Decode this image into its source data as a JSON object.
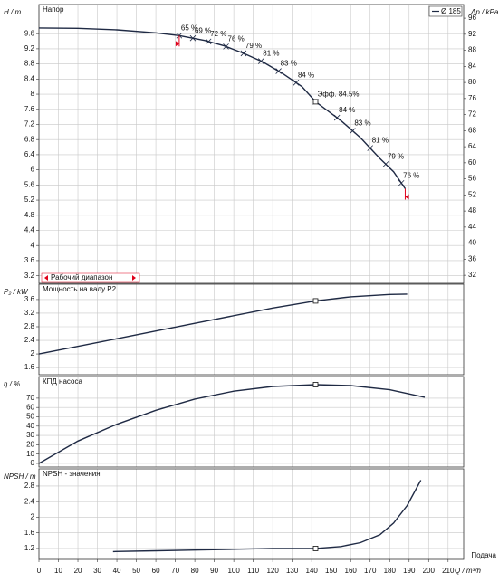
{
  "chart_data": [
    {
      "type": "line",
      "title": "Напор",
      "ylabel": "H / m",
      "y2label": "Δp / kPa",
      "xlim": [
        0,
        218
      ],
      "ylim": [
        3.0,
        10.37
      ],
      "yticks": [
        3.2,
        3.6,
        4,
        4.4,
        4.8,
        5.2,
        5.6,
        6,
        6.4,
        6.8,
        7.2,
        7.6,
        8,
        8.4,
        8.8,
        9.2,
        9.6
      ],
      "y2lim": [
        30,
        99.4
      ],
      "y2ticks": [
        32,
        36,
        40,
        44,
        48,
        52,
        56,
        60,
        64,
        68,
        72,
        76,
        80,
        84,
        88,
        92,
        96
      ],
      "grid": true,
      "legend": "top-right",
      "series": [
        {
          "name": "Ø 185",
          "color": "#1f2a44",
          "x": [
            0,
            20,
            40,
            60,
            72,
            85,
            95,
            105,
            115,
            125,
            135,
            142,
            155,
            165,
            175,
            182,
            188
          ],
          "values": [
            9.75,
            9.74,
            9.7,
            9.62,
            9.55,
            9.42,
            9.28,
            9.08,
            8.85,
            8.55,
            8.2,
            7.8,
            7.3,
            6.85,
            6.3,
            5.95,
            5.5
          ]
        }
      ],
      "markers": [
        {
          "x": 142,
          "y": 7.8
        }
      ],
      "annotations": [
        {
          "x": 72,
          "text": "65 %"
        },
        {
          "x": 79,
          "text": "69 %"
        },
        {
          "x": 87,
          "text": "72 %"
        },
        {
          "x": 96,
          "text": "76 %"
        },
        {
          "x": 105,
          "text": "79 %"
        },
        {
          "x": 114,
          "text": "81 %"
        },
        {
          "x": 123,
          "text": "83 %"
        },
        {
          "x": 132,
          "text": "84 %"
        },
        {
          "x": 142,
          "text": "Эфф. 84.5%"
        },
        {
          "x": 153,
          "text": "84 %"
        },
        {
          "x": 161,
          "text": "83 %"
        },
        {
          "x": 170,
          "text": "81 %"
        },
        {
          "x": 178,
          "text": "79 %"
        },
        {
          "x": 186,
          "text": "76 %"
        }
      ],
      "operating_range": [
        72,
        188
      ],
      "operating_range_label": "Рабочий диапазон",
      "operating_range_color": "#e0001a"
    },
    {
      "type": "line",
      "title": "Мощность на валу P2",
      "ylabel": "P₂ / kW",
      "xlim": [
        0,
        218
      ],
      "ylim": [
        1.39,
        4.05
      ],
      "yticks": [
        1.6,
        2,
        2.4,
        2.8,
        3.2,
        3.6
      ],
      "grid": true,
      "series": [
        {
          "color": "#1f2a44",
          "x": [
            0,
            40,
            80,
            120,
            142,
            160,
            180,
            189
          ],
          "values": [
            2.0,
            2.45,
            2.9,
            3.35,
            3.56,
            3.68,
            3.75,
            3.76
          ]
        }
      ],
      "markers": [
        {
          "x": 142,
          "y": 3.56
        }
      ]
    },
    {
      "type": "line",
      "title": "КПД насоса",
      "ylabel": "η / %",
      "xlim": [
        0,
        218
      ],
      "ylim": [
        -3.9,
        93.2
      ],
      "yticks": [
        0,
        10,
        20,
        30,
        40,
        50,
        60,
        70
      ],
      "grid": true,
      "series": [
        {
          "color": "#1f2a44",
          "x": [
            0,
            20,
            40,
            60,
            80,
            100,
            120,
            142,
            160,
            180,
            198
          ],
          "values": [
            0,
            24,
            42,
            57,
            69,
            77.5,
            82.5,
            84.5,
            83.5,
            79,
            71
          ]
        }
      ],
      "markers": [
        {
          "x": 142,
          "y": 84.5
        }
      ]
    },
    {
      "type": "line",
      "title": "NPSH - значения",
      "ylabel": "NPSH / m",
      "xlabel": "Q / m³/h",
      "xcaption": "Подача",
      "xlim": [
        0,
        218
      ],
      "ylim": [
        0.92,
        3.24
      ],
      "yticks": [
        1.2,
        1.6,
        2,
        2.4,
        2.8
      ],
      "xticks": [
        0,
        10,
        20,
        30,
        40,
        50,
        60,
        70,
        80,
        90,
        100,
        110,
        120,
        130,
        140,
        150,
        160,
        170,
        180,
        190,
        200,
        210
      ],
      "grid": true,
      "series": [
        {
          "color": "#1f2a44",
          "x": [
            38,
            60,
            80,
            100,
            120,
            142,
            155,
            165,
            175,
            182,
            189,
            196
          ],
          "values": [
            1.12,
            1.14,
            1.16,
            1.18,
            1.2,
            1.2,
            1.25,
            1.35,
            1.55,
            1.85,
            2.3,
            2.95
          ]
        }
      ],
      "markers": [
        {
          "x": 142,
          "y": 1.2
        }
      ]
    }
  ]
}
